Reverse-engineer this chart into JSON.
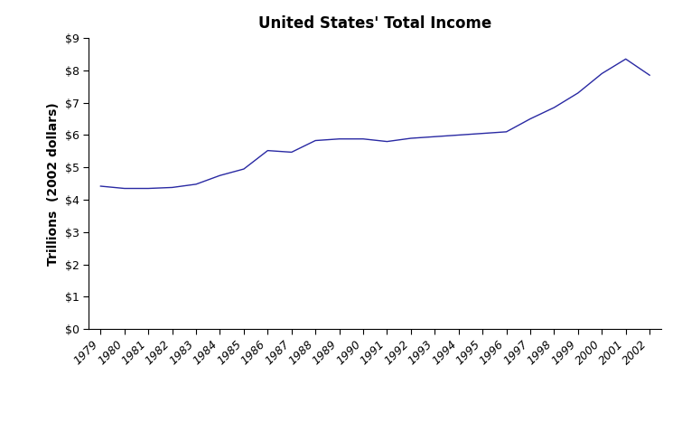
{
  "title": "United States' Total Income",
  "ylabel": "Trillions  (2002 dollars)",
  "years": [
    1979,
    1980,
    1981,
    1982,
    1983,
    1984,
    1985,
    1986,
    1987,
    1988,
    1989,
    1990,
    1991,
    1992,
    1993,
    1994,
    1995,
    1996,
    1997,
    1998,
    1999,
    2000,
    2001,
    2002
  ],
  "values": [
    4.42,
    4.35,
    4.35,
    4.38,
    4.48,
    4.75,
    4.95,
    5.52,
    5.47,
    5.83,
    5.88,
    5.88,
    5.8,
    5.9,
    5.95,
    6.0,
    6.05,
    6.1,
    6.5,
    6.85,
    7.3,
    7.9,
    8.35,
    7.85
  ],
  "line_color": "#2929a3",
  "ylim": [
    0,
    9
  ],
  "ytick_values": [
    0,
    1,
    2,
    3,
    4,
    5,
    6,
    7,
    8,
    9
  ],
  "background_color": "#ffffff",
  "title_fontsize": 12,
  "label_fontsize": 10,
  "tick_fontsize": 9
}
